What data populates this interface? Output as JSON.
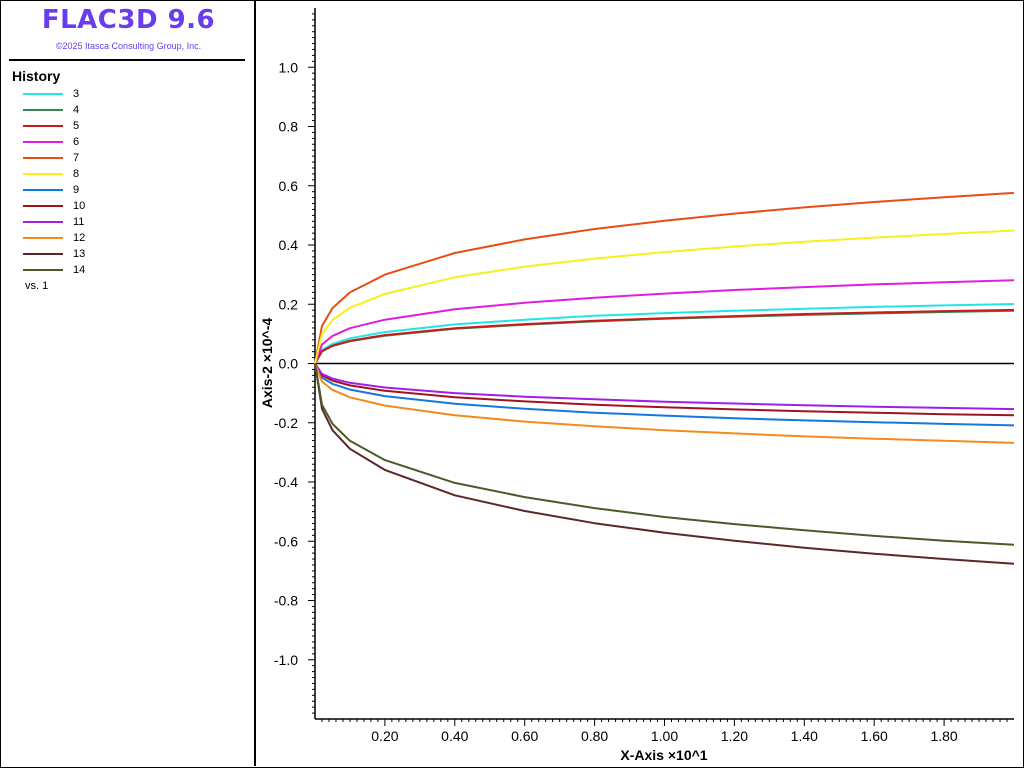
{
  "app": {
    "title": "FLAC3D 9.6",
    "copyright": "©2025 Itasca Consulting Group, Inc."
  },
  "legend": {
    "heading": "History",
    "items": [
      {
        "label": "3",
        "color": "#22e6e6"
      },
      {
        "label": "4",
        "color": "#2e8b57"
      },
      {
        "label": "5",
        "color": "#cc1a1a"
      },
      {
        "label": "6",
        "color": "#e01ee0"
      },
      {
        "label": "7",
        "color": "#e84e14"
      },
      {
        "label": "8",
        "color": "#f5f01e"
      },
      {
        "label": "9",
        "color": "#1478e0"
      },
      {
        "label": "10",
        "color": "#a0141e"
      },
      {
        "label": "11",
        "color": "#a21ee6"
      },
      {
        "label": "12",
        "color": "#f08c1e"
      },
      {
        "label": "13",
        "color": "#5a2828"
      },
      {
        "label": "14",
        "color": "#4a5a28"
      }
    ],
    "vs_label": "vs. 1"
  },
  "chart_data": {
    "type": "line",
    "xlabel": "X-Axis ×10^1",
    "ylabel": "Axis-2 ×10^-4",
    "xlim": [
      0.0,
      2.0
    ],
    "ylim": [
      -1.2,
      1.2
    ],
    "x_ticks": [
      "0.20",
      "0.40",
      "0.60",
      "0.80",
      "1.00",
      "1.20",
      "1.40",
      "1.60",
      "1.80"
    ],
    "y_ticks": [
      "1.0",
      "0.8",
      "0.6",
      "0.4",
      "0.2",
      "0.0",
      "-0.2",
      "-0.4",
      "-0.6",
      "-0.8",
      "-1.0"
    ],
    "x": [
      0.0,
      0.02,
      0.05,
      0.1,
      0.2,
      0.4,
      0.6,
      0.8,
      1.0,
      1.2,
      1.4,
      1.6,
      1.8,
      2.0
    ],
    "series": [
      {
        "name": "3",
        "color": "#22e6e6",
        "values": [
          0.0,
          0.046,
          0.066,
          0.085,
          0.106,
          0.132,
          0.148,
          0.161,
          0.17,
          0.178,
          0.185,
          0.191,
          0.196,
          0.201
        ]
      },
      {
        "name": "4",
        "color": "#2e8b57",
        "values": [
          0.0,
          0.041,
          0.059,
          0.075,
          0.094,
          0.117,
          0.131,
          0.142,
          0.151,
          0.158,
          0.164,
          0.169,
          0.174,
          0.178
        ]
      },
      {
        "name": "5",
        "color": "#cc1a1a",
        "values": [
          0.0,
          0.042,
          0.06,
          0.077,
          0.096,
          0.119,
          0.133,
          0.144,
          0.153,
          0.16,
          0.167,
          0.172,
          0.177,
          0.181
        ]
      },
      {
        "name": "6",
        "color": "#e01ee0",
        "values": [
          0.0,
          0.064,
          0.093,
          0.119,
          0.148,
          0.183,
          0.205,
          0.222,
          0.236,
          0.248,
          0.258,
          0.267,
          0.274,
          0.281
        ]
      },
      {
        "name": "7",
        "color": "#e84e14",
        "values": [
          0.0,
          0.127,
          0.187,
          0.24,
          0.3,
          0.373,
          0.419,
          0.454,
          0.482,
          0.506,
          0.527,
          0.545,
          0.561,
          0.576
        ]
      },
      {
        "name": "8",
        "color": "#f5f01e",
        "values": [
          0.0,
          0.1,
          0.147,
          0.188,
          0.235,
          0.291,
          0.327,
          0.354,
          0.376,
          0.395,
          0.411,
          0.425,
          0.437,
          0.449
        ]
      },
      {
        "name": "9",
        "color": "#1478e0",
        "values": [
          0.0,
          -0.048,
          -0.069,
          -0.088,
          -0.11,
          -0.136,
          -0.153,
          -0.166,
          -0.176,
          -0.185,
          -0.192,
          -0.198,
          -0.204,
          -0.209
        ]
      },
      {
        "name": "10",
        "color": "#a0141e",
        "values": [
          0.0,
          -0.04,
          -0.058,
          -0.074,
          -0.092,
          -0.114,
          -0.128,
          -0.139,
          -0.148,
          -0.155,
          -0.161,
          -0.166,
          -0.171,
          -0.175
        ]
      },
      {
        "name": "11",
        "color": "#a21ee6",
        "values": [
          0.0,
          -0.035,
          -0.051,
          -0.065,
          -0.081,
          -0.1,
          -0.112,
          -0.121,
          -0.129,
          -0.135,
          -0.141,
          -0.146,
          -0.15,
          -0.154
        ]
      },
      {
        "name": "12",
        "color": "#f08c1e",
        "values": [
          0.0,
          -0.061,
          -0.089,
          -0.114,
          -0.142,
          -0.175,
          -0.196,
          -0.212,
          -0.225,
          -0.236,
          -0.246,
          -0.254,
          -0.261,
          -0.268
        ]
      },
      {
        "name": "13",
        "color": "#5a2828",
        "values": [
          0.0,
          -0.153,
          -0.225,
          -0.288,
          -0.359,
          -0.445,
          -0.498,
          -0.539,
          -0.571,
          -0.598,
          -0.622,
          -0.642,
          -0.66,
          -0.676
        ]
      },
      {
        "name": "14",
        "color": "#4a5a28",
        "values": [
          0.0,
          -0.139,
          -0.204,
          -0.261,
          -0.326,
          -0.403,
          -0.451,
          -0.488,
          -0.518,
          -0.542,
          -0.563,
          -0.582,
          -0.598,
          -0.612
        ]
      }
    ]
  }
}
